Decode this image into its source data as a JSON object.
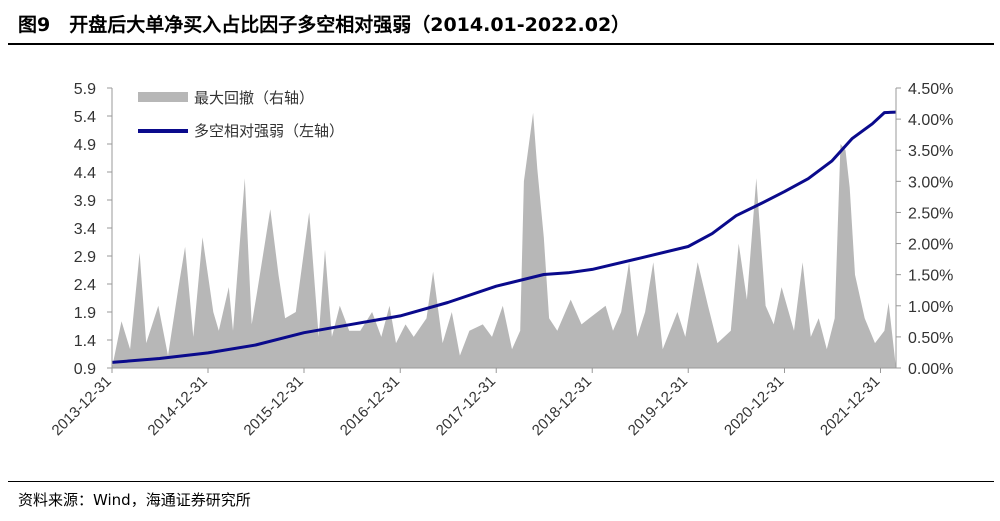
{
  "figure_title": "图9　开盘后大单净买入占比因子多空相对强弱（2014.01-2022.02）",
  "source": "资料来源：Wind，海通证券研究所",
  "chart_data": {
    "type": "line",
    "x_tick_labels": [
      "2013-12-31",
      "2014-12-31",
      "2015-12-31",
      "2016-12-31",
      "2017-12-31",
      "2018-12-31",
      "2019-12-31",
      "2020-12-31",
      "2021-12-31"
    ],
    "x_range": [
      "2013-12-31",
      "2022-02-28"
    ],
    "left_axis": {
      "ticks": [
        0.9,
        1.4,
        1.9,
        2.4,
        2.9,
        3.4,
        3.9,
        4.4,
        4.9,
        5.4,
        5.9
      ],
      "tick_labels": [
        "0.9",
        "1.4",
        "1.9",
        "2.4",
        "2.9",
        "3.4",
        "3.9",
        "4.4",
        "4.9",
        "5.4",
        "5.9"
      ],
      "range": [
        0.9,
        5.9
      ]
    },
    "right_axis": {
      "ticks": [
        0,
        0.5,
        1,
        1.5,
        2,
        2.5,
        3,
        3.5,
        4,
        4.5
      ],
      "tick_labels": [
        "0.00%",
        "0.50%",
        "1.00%",
        "1.50%",
        "2.00%",
        "2.50%",
        "3.00%",
        "3.50%",
        "4.00%",
        "4.50%"
      ],
      "range": [
        0,
        4.5
      ]
    },
    "legend_position": "top-left",
    "series": [
      {
        "name": "最大回撤（右轴）",
        "type": "area",
        "axis": "right",
        "color": "#b7b7b7",
        "points": [
          [
            "2013-12-31",
            0.0
          ],
          [
            "2014-02-05",
            0.75
          ],
          [
            "2014-03-10",
            0.3
          ],
          [
            "2014-04-15",
            1.85
          ],
          [
            "2014-05-10",
            0.4
          ],
          [
            "2014-06-25",
            1.0
          ],
          [
            "2014-08-01",
            0.2
          ],
          [
            "2014-09-10",
            1.3
          ],
          [
            "2014-10-05",
            1.95
          ],
          [
            "2014-11-05",
            0.5
          ],
          [
            "2014-12-10",
            2.1
          ],
          [
            "2015-01-20",
            0.9
          ],
          [
            "2015-02-10",
            0.6
          ],
          [
            "2015-03-20",
            1.3
          ],
          [
            "2015-04-05",
            0.6
          ],
          [
            "2015-05-20",
            3.05
          ],
          [
            "2015-06-15",
            0.7
          ],
          [
            "2015-07-05",
            1.2
          ],
          [
            "2015-08-25",
            2.55
          ],
          [
            "2015-09-25",
            1.5
          ],
          [
            "2015-10-20",
            0.8
          ],
          [
            "2015-11-30",
            0.9
          ],
          [
            "2016-01-20",
            2.5
          ],
          [
            "2016-02-25",
            0.5
          ],
          [
            "2016-03-20",
            1.9
          ],
          [
            "2016-04-15",
            0.5
          ],
          [
            "2016-05-15",
            1.0
          ],
          [
            "2016-06-20",
            0.6
          ],
          [
            "2016-08-01",
            0.6
          ],
          [
            "2016-09-15",
            0.9
          ],
          [
            "2016-10-20",
            0.5
          ],
          [
            "2016-11-20",
            1.0
          ],
          [
            "2016-12-15",
            0.4
          ],
          [
            "2017-01-20",
            0.7
          ],
          [
            "2017-02-20",
            0.5
          ],
          [
            "2017-04-10",
            0.8
          ],
          [
            "2017-05-05",
            1.55
          ],
          [
            "2017-06-10",
            0.4
          ],
          [
            "2017-07-15",
            0.9
          ],
          [
            "2017-08-15",
            0.2
          ],
          [
            "2017-09-20",
            0.6
          ],
          [
            "2017-11-10",
            0.7
          ],
          [
            "2017-12-15",
            0.5
          ],
          [
            "2018-01-25",
            1.0
          ],
          [
            "2018-03-01",
            0.3
          ],
          [
            "2018-04-01",
            0.6
          ],
          [
            "2018-04-15",
            3.0
          ],
          [
            "2018-05-01",
            3.5
          ],
          [
            "2018-05-20",
            4.1
          ],
          [
            "2018-06-05",
            3.2
          ],
          [
            "2018-06-30",
            2.1
          ],
          [
            "2018-07-20",
            0.8
          ],
          [
            "2018-08-20",
            0.6
          ],
          [
            "2018-10-10",
            1.1
          ],
          [
            "2018-11-20",
            0.7
          ],
          [
            "2018-12-20",
            0.8
          ],
          [
            "2019-02-20",
            1.0
          ],
          [
            "2019-03-20",
            0.6
          ],
          [
            "2019-04-20",
            0.9
          ],
          [
            "2019-05-20",
            1.7
          ],
          [
            "2019-06-20",
            0.5
          ],
          [
            "2019-07-20",
            0.9
          ],
          [
            "2019-08-20",
            1.7
          ],
          [
            "2019-09-25",
            0.3
          ],
          [
            "2019-11-20",
            0.9
          ],
          [
            "2019-12-20",
            0.5
          ],
          [
            "2020-02-05",
            1.7
          ],
          [
            "2020-03-15",
            1.0
          ],
          [
            "2020-04-20",
            0.4
          ],
          [
            "2020-06-10",
            0.6
          ],
          [
            "2020-07-10",
            2.0
          ],
          [
            "2020-08-10",
            1.1
          ],
          [
            "2020-09-15",
            3.05
          ],
          [
            "2020-10-20",
            1.0
          ],
          [
            "2020-11-20",
            0.7
          ],
          [
            "2020-12-20",
            1.3
          ],
          [
            "2021-02-05",
            0.6
          ],
          [
            "2021-03-10",
            1.7
          ],
          [
            "2021-04-10",
            0.5
          ],
          [
            "2021-05-10",
            0.8
          ],
          [
            "2021-06-10",
            0.3
          ],
          [
            "2021-07-10",
            0.8
          ],
          [
            "2021-08-01",
            3.6
          ],
          [
            "2021-08-20",
            3.5
          ],
          [
            "2021-09-05",
            2.9
          ],
          [
            "2021-09-25",
            1.5
          ],
          [
            "2021-11-01",
            0.8
          ],
          [
            "2021-12-10",
            0.4
          ],
          [
            "2022-01-15",
            0.6
          ],
          [
            "2022-01-31",
            1.05
          ],
          [
            "2022-02-28",
            0.0
          ]
        ]
      },
      {
        "name": "多空相对强弱（左轴）",
        "type": "line",
        "axis": "left",
        "color": "#0a0a8c",
        "points": [
          [
            "2013-12-31",
            1.0
          ],
          [
            "2014-06-30",
            1.07
          ],
          [
            "2014-12-31",
            1.17
          ],
          [
            "2015-06-30",
            1.31
          ],
          [
            "2015-12-31",
            1.53
          ],
          [
            "2016-06-30",
            1.68
          ],
          [
            "2016-12-31",
            1.83
          ],
          [
            "2017-06-30",
            2.07
          ],
          [
            "2017-12-31",
            2.36
          ],
          [
            "2018-06-30",
            2.57
          ],
          [
            "2018-09-30",
            2.6
          ],
          [
            "2018-12-31",
            2.66
          ],
          [
            "2019-06-30",
            2.86
          ],
          [
            "2019-12-31",
            3.07
          ],
          [
            "2020-03-31",
            3.3
          ],
          [
            "2020-06-30",
            3.62
          ],
          [
            "2020-09-30",
            3.83
          ],
          [
            "2020-12-31",
            4.05
          ],
          [
            "2021-03-31",
            4.28
          ],
          [
            "2021-06-30",
            4.6
          ],
          [
            "2021-09-15",
            5.0
          ],
          [
            "2021-11-30",
            5.26
          ],
          [
            "2022-01-15",
            5.46
          ],
          [
            "2022-02-28",
            5.47
          ]
        ]
      }
    ]
  }
}
